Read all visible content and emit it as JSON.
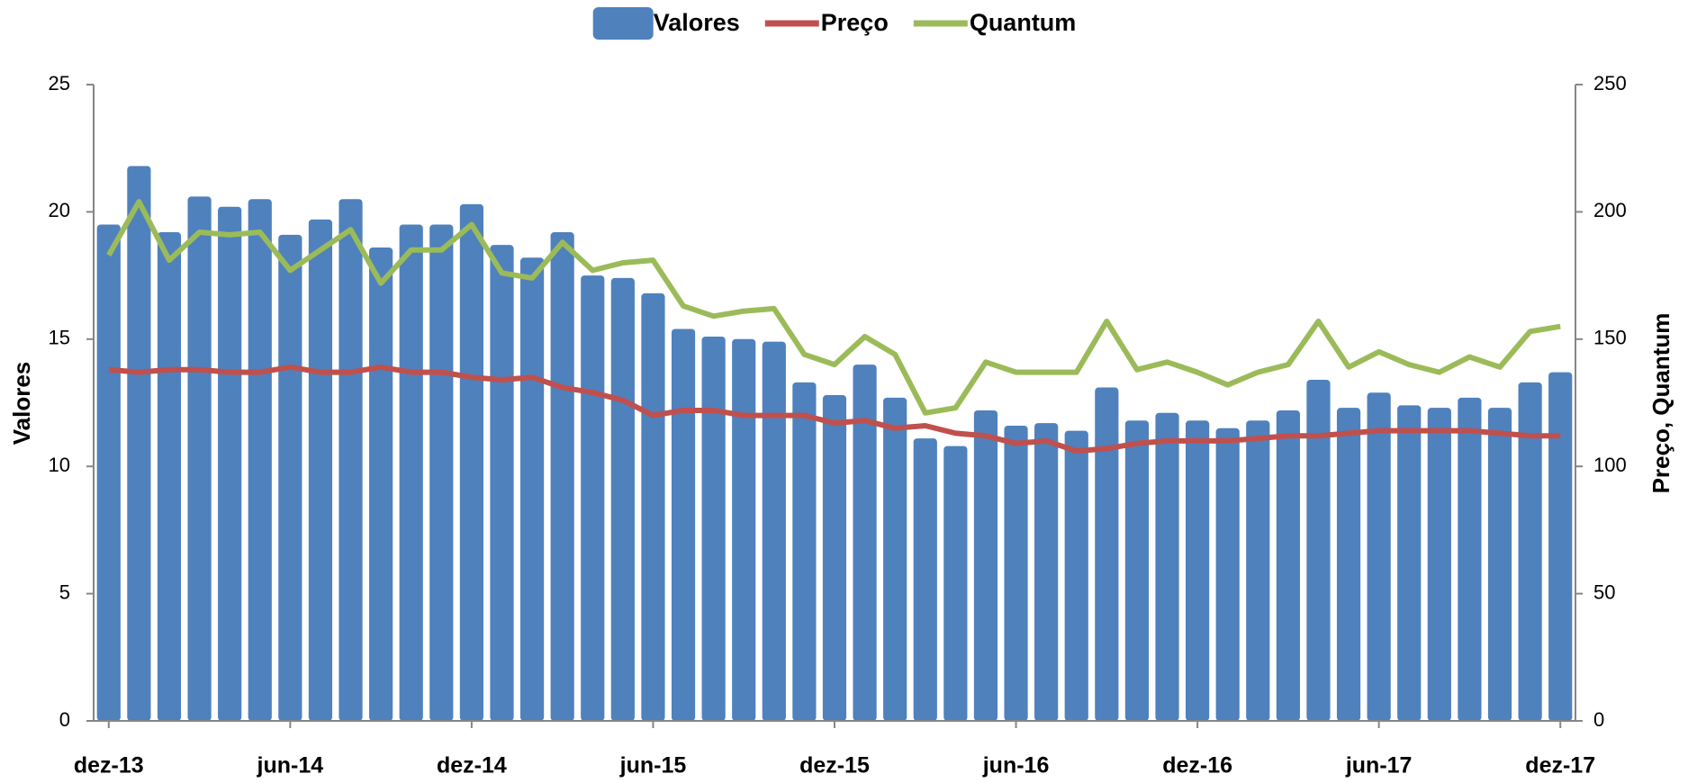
{
  "chart_data": {
    "type": "bar",
    "categories": [
      "dez-13",
      null,
      null,
      null,
      null,
      null,
      "jun-14",
      null,
      null,
      null,
      null,
      null,
      "dez-14",
      null,
      null,
      null,
      null,
      null,
      "jun-15",
      null,
      null,
      null,
      null,
      null,
      "dez-15",
      null,
      null,
      null,
      null,
      null,
      "jun-16",
      null,
      null,
      null,
      null,
      null,
      "dez-16",
      null,
      null,
      null,
      null,
      null,
      "jun-17",
      null,
      null,
      null,
      null,
      null,
      "dez-17"
    ],
    "series": [
      {
        "name": "Valores",
        "type": "bar",
        "color": "#4f81bd",
        "axis": "y",
        "values": [
          19.5,
          21.8,
          19.2,
          20.6,
          20.2,
          20.5,
          19.1,
          19.7,
          20.5,
          18.6,
          19.5,
          19.5,
          20.3,
          18.7,
          18.2,
          19.2,
          17.5,
          17.4,
          16.8,
          15.4,
          15.1,
          15.0,
          14.9,
          13.3,
          12.8,
          14.0,
          12.7,
          11.1,
          10.8,
          12.2,
          11.6,
          11.7,
          11.4,
          13.1,
          11.8,
          12.1,
          11.8,
          11.5,
          11.8,
          12.2,
          13.4,
          12.3,
          12.9,
          12.4,
          12.3,
          12.7,
          12.3,
          13.3,
          13.7
        ]
      },
      {
        "name": "Preço",
        "type": "line",
        "color": "#c0504d",
        "axis": "y2",
        "values": [
          138,
          137,
          138,
          138,
          137,
          137,
          139,
          137,
          137,
          139,
          137,
          137,
          135,
          134,
          135,
          131,
          129,
          126,
          120,
          122,
          122,
          120,
          120,
          120,
          117,
          118,
          115,
          116,
          113,
          112,
          109,
          110,
          106,
          107,
          109,
          110,
          110,
          110,
          111,
          112,
          112,
          113,
          114,
          114,
          114,
          114,
          113,
          112,
          112
        ]
      },
      {
        "name": "Quantum",
        "type": "line",
        "color": "#9bbb59",
        "axis": "y2",
        "values": [
          183,
          204,
          181,
          192,
          191,
          192,
          177,
          185,
          193,
          172,
          185,
          185,
          195,
          176,
          174,
          188,
          177,
          180,
          181,
          163,
          159,
          161,
          162,
          144,
          140,
          151,
          144,
          121,
          123,
          141,
          137,
          137,
          137,
          157,
          138,
          141,
          137,
          132,
          137,
          140,
          157,
          139,
          145,
          140,
          137,
          143,
          139,
          153,
          155
        ]
      }
    ],
    "y_label": "Valores",
    "y2_label": "Preço, Quantum",
    "ylim": [
      0,
      25
    ],
    "yticks": [
      0,
      5,
      10,
      15,
      20,
      25
    ],
    "y2lim": [
      0,
      250
    ],
    "y2ticks": [
      0,
      50,
      100,
      150,
      200,
      250
    ],
    "legend": "top",
    "grid": false
  }
}
